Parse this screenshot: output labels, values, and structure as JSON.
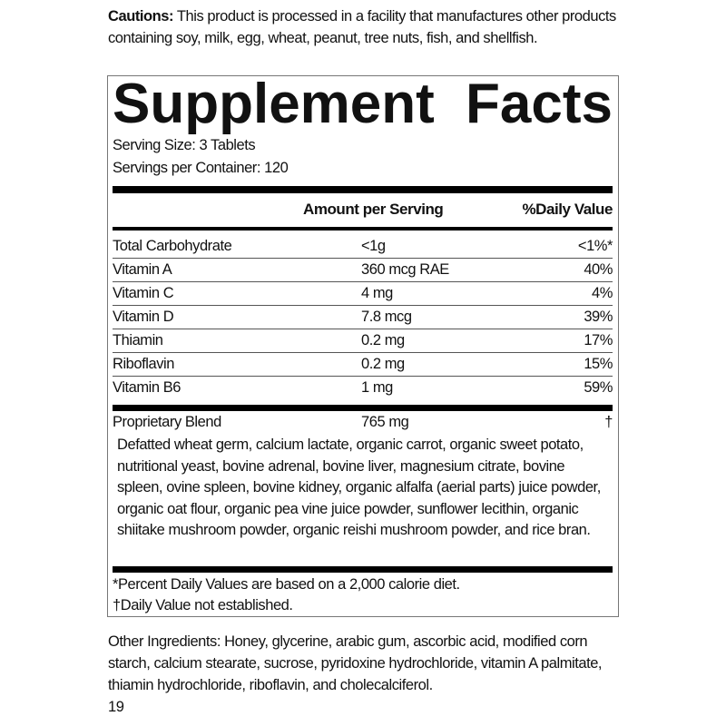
{
  "cautions": {
    "label": "Cautions:",
    "text": " This product is processed in a facility that manufactures other products containing soy, milk, egg, wheat, peanut, tree nuts, fish, and shellfish."
  },
  "facts": {
    "title_word1": "Supplement",
    "title_word2": "Facts",
    "serving_size": "Serving Size: 3 Tablets",
    "servings_per_container": "Servings per Container: 120",
    "header": {
      "amount": "Amount per Serving",
      "dv": "%Daily Value"
    },
    "rows": [
      {
        "name": "Total Carbohydrate",
        "amount": "<1g",
        "dv": "<1%*"
      },
      {
        "name": "Vitamin A",
        "amount": "360 mcg RAE",
        "dv": "40%"
      },
      {
        "name": "Vitamin C",
        "amount": "4 mg",
        "dv": "4%"
      },
      {
        "name": "Vitamin D",
        "amount": "7.8 mcg",
        "dv": "39%"
      },
      {
        "name": "Thiamin",
        "amount": "0.2 mg",
        "dv": "17%"
      },
      {
        "name": "Riboflavin",
        "amount": "0.2 mg",
        "dv": "15%"
      },
      {
        "name": "Vitamin B6",
        "amount": "1 mg",
        "dv": "59%"
      }
    ],
    "blend": {
      "name": "Proprietary Blend",
      "amount": "765 mg",
      "dv": "†",
      "ingredients": "Defatted wheat germ, calcium lactate, organic carrot, organic sweet potato, nutritional yeast, bovine adrenal, bovine liver, magnesium citrate, bovine spleen, ovine spleen, bovine kidney, organic alfalfa (aerial parts) juice powder, organic oat flour, organic pea vine juice powder, sunflower lecithin, organic shiitake mushroom powder, organic reishi mushroom powder, and rice bran."
    },
    "footnote1": "*Percent Daily Values are based on a 2,000 calorie diet.",
    "footnote2": "†Daily Value not established."
  },
  "other_ingredients": "Other Ingredients: Honey, glycerine, arabic gum, ascorbic acid, modified corn starch, calcium stearate, sucrose, pyridoxine hydrochloride, vitamin A palmitate, thiamin hydrochloride, riboflavin, and cholecalciferol.",
  "page_number": "19"
}
